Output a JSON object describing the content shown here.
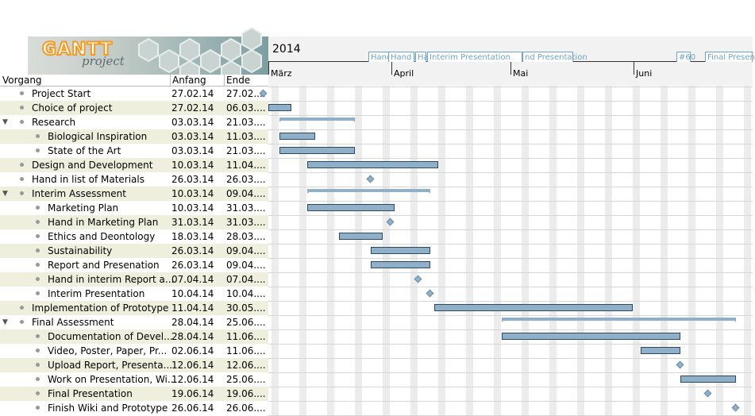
{
  "logo": {
    "text_main": "GANTT",
    "text_sub": "project"
  },
  "columns": {
    "task": "Vorgang",
    "start": "Anfang",
    "end": "Ende"
  },
  "timeline": {
    "year": "2014",
    "months": [
      "März",
      "April",
      "Mai",
      "Juni"
    ],
    "milestones": [
      "Hand",
      "Hand i",
      "Ha",
      "Interim Presentation",
      "nd Presentation",
      "#60",
      "Final Presen"
    ]
  },
  "tasks": [
    {
      "name": "Project Start",
      "start": "27.02.14",
      "end": "27.02....",
      "level": 0,
      "type": "milestone",
      "s": -2,
      "e": -2
    },
    {
      "name": "Choice of project",
      "start": "27.02.14",
      "end": "06.03....",
      "level": 0,
      "type": "task",
      "s": -2,
      "e": 5
    },
    {
      "name": "Research",
      "start": "03.03.14",
      "end": "21.03....",
      "level": 0,
      "type": "summary",
      "expanded": true,
      "s": 2,
      "e": 21
    },
    {
      "name": "Biological Inspiration",
      "start": "03.03.14",
      "end": "11.03....",
      "level": 1,
      "type": "task",
      "s": 2,
      "e": 11
    },
    {
      "name": "State of the Art",
      "start": "03.03.14",
      "end": "21.03....",
      "level": 1,
      "type": "task",
      "s": 2,
      "e": 21
    },
    {
      "name": "Design and Development",
      "start": "10.03.14",
      "end": "11.04....",
      "level": 0,
      "type": "task",
      "s": 9,
      "e": 42
    },
    {
      "name": "Hand in list of Materials",
      "start": "26.03.14",
      "end": "26.03....",
      "level": 0,
      "type": "milestone",
      "s": 25,
      "e": 25
    },
    {
      "name": "Interim Assessment",
      "start": "10.03.14",
      "end": "09.04....",
      "level": 0,
      "type": "summary",
      "expanded": true,
      "s": 9,
      "e": 40
    },
    {
      "name": "Marketing Plan",
      "start": "10.03.14",
      "end": "31.03....",
      "level": 1,
      "type": "task",
      "s": 9,
      "e": 31
    },
    {
      "name": "Hand in Marketing Plan",
      "start": "31.03.14",
      "end": "31.03....",
      "level": 1,
      "type": "milestone",
      "s": 30,
      "e": 30
    },
    {
      "name": "Ethics and Deontology",
      "start": "18.03.14",
      "end": "28.03....",
      "level": 1,
      "type": "task",
      "s": 17,
      "e": 28
    },
    {
      "name": "Sustainability",
      "start": "26.03.14",
      "end": "09.04....",
      "level": 1,
      "type": "task",
      "s": 25,
      "e": 40
    },
    {
      "name": "Report and Presenation",
      "start": "26.03.14",
      "end": "09.04....",
      "level": 1,
      "type": "task",
      "s": 25,
      "e": 40
    },
    {
      "name": "Hand in interim Report a...",
      "start": "07.04.14",
      "end": "07.04....",
      "level": 1,
      "type": "milestone",
      "s": 37,
      "e": 37
    },
    {
      "name": "Interim Presentation",
      "start": "10.04.14",
      "end": "10.04....",
      "level": 1,
      "type": "milestone",
      "s": 40,
      "e": 40
    },
    {
      "name": "Implementation of Prototype",
      "start": "11.04.14",
      "end": "30.05....",
      "level": 0,
      "type": "task",
      "s": 41,
      "e": 91
    },
    {
      "name": "Final Assessment",
      "start": "28.04.14",
      "end": "25.06....",
      "level": 0,
      "type": "summary",
      "expanded": true,
      "s": 58,
      "e": 117
    },
    {
      "name": "Documentation of Devel...",
      "start": "28.04.14",
      "end": "11.06....",
      "level": 1,
      "type": "task",
      "s": 58,
      "e": 103
    },
    {
      "name": "Video, Poster, Paper, Pr...",
      "start": "02.06.14",
      "end": "11.06....",
      "level": 1,
      "type": "task",
      "s": 93,
      "e": 103
    },
    {
      "name": "Upload Report, Presenta...",
      "start": "12.06.14",
      "end": "12.06....",
      "level": 1,
      "type": "milestone",
      "s": 103,
      "e": 103
    },
    {
      "name": "Work on Presentation, Wi...",
      "start": "12.06.14",
      "end": "25.06....",
      "level": 1,
      "type": "task",
      "s": 103,
      "e": 117
    },
    {
      "name": "Final Presentation",
      "start": "19.06.14",
      "end": "19.06....",
      "level": 1,
      "type": "milestone",
      "s": 110,
      "e": 110
    },
    {
      "name": "Finish Wiki and Prototype",
      "start": "26.06.14",
      "end": "26.06....",
      "level": 1,
      "type": "milestone",
      "s": 117,
      "e": 117
    }
  ]
}
